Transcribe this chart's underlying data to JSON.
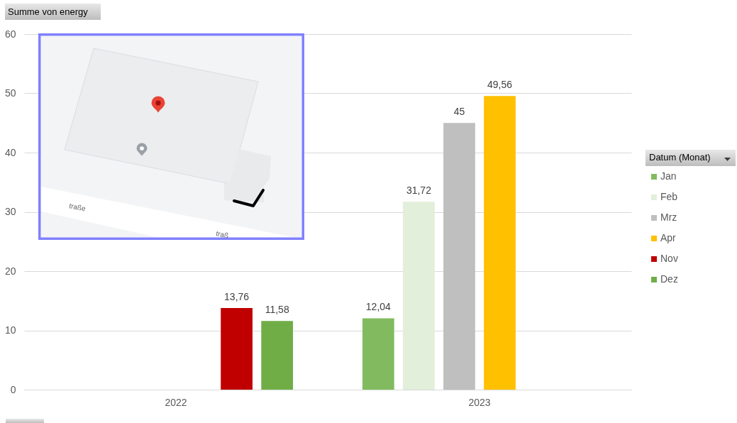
{
  "chart_data": {
    "type": "bar",
    "title": "Summe von energy",
    "legend_title": "Datum (Monat)",
    "categories": [
      "2022",
      "2023"
    ],
    "series": [
      {
        "name": "Jan",
        "color": "#82bb5f",
        "values": [
          null,
          12.04
        ],
        "value_labels": [
          null,
          "12,04"
        ]
      },
      {
        "name": "Feb",
        "color": "#e2efda",
        "values": [
          null,
          31.72
        ],
        "value_labels": [
          null,
          "31,72"
        ]
      },
      {
        "name": "Mrz",
        "color": "#bfbfbf",
        "values": [
          null,
          45
        ],
        "value_labels": [
          null,
          "45"
        ]
      },
      {
        "name": "Apr",
        "color": "#ffc000",
        "values": [
          null,
          49.56
        ],
        "value_labels": [
          null,
          "49,56"
        ]
      },
      {
        "name": "Nov",
        "color": "#c00000",
        "values": [
          13.76,
          null
        ],
        "value_labels": [
          "13,76",
          null
        ]
      },
      {
        "name": "Dez",
        "color": "#70ad47",
        "values": [
          11.58,
          null
        ],
        "value_labels": [
          "11,58",
          null
        ]
      }
    ],
    "ylim": [
      0,
      60
    ],
    "yticks": [
      0,
      10,
      20,
      30,
      40,
      50,
      60
    ],
    "grid": "y",
    "legend": "right",
    "annotations": [
      "traße",
      "traß"
    ]
  }
}
